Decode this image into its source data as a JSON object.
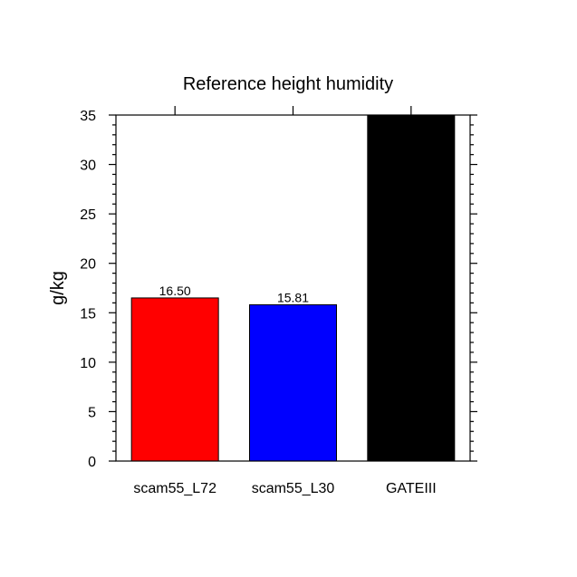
{
  "chart_data": {
    "type": "bar",
    "title": "Reference height humidity",
    "xlabel": "",
    "ylabel": "g/kg",
    "categories": [
      "scam55_L72",
      "scam55_L30",
      "GATEIII"
    ],
    "values": [
      16.5,
      15.81,
      35
    ],
    "value_labels": [
      "16.50",
      "15.81",
      ""
    ],
    "colors": [
      "#ff0000",
      "#0000ff",
      "#000000"
    ],
    "ylim": [
      0,
      35
    ],
    "yticks": [
      0,
      5,
      10,
      15,
      20,
      25,
      30,
      35
    ],
    "ytick_labels": [
      "0",
      "5",
      "10",
      "15",
      "20",
      "25",
      "30",
      "35"
    ],
    "ytick_minor_step": 1,
    "grid": false,
    "legend": "none"
  }
}
